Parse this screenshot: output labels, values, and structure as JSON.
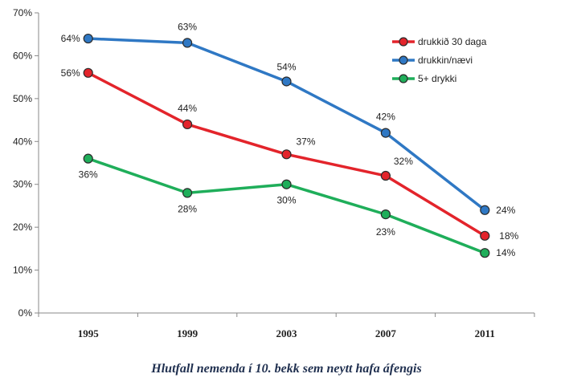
{
  "chart_data": {
    "type": "line",
    "categories": [
      "1995",
      "1999",
      "2003",
      "2007",
      "2011"
    ],
    "series": [
      {
        "name": "drukkið 30 daga",
        "color": "#e3242b",
        "values": [
          56,
          44,
          37,
          32,
          18
        ],
        "labels": [
          "56%",
          "44%",
          "37%",
          "32%",
          "18%"
        ]
      },
      {
        "name": "drukkin/nævi",
        "color": "#2f78c4",
        "values": [
          64,
          63,
          54,
          42,
          24
        ],
        "labels": [
          "64%",
          "63%",
          "54%",
          "42%",
          "24%"
        ]
      },
      {
        "name": "5+ drykki",
        "color": "#1fae5a",
        "values": [
          36,
          28,
          30,
          23,
          14
        ],
        "labels": [
          "36%",
          "28%",
          "30%",
          "23%",
          "14%"
        ]
      }
    ],
    "yticks": [
      "0%",
      "10%",
      "20%",
      "30%",
      "40%",
      "50%",
      "60%",
      "70%"
    ],
    "ylim": [
      0,
      70
    ],
    "legend_position": "top-right",
    "grid": false,
    "caption": "Hlutfall nemenda í 10. bekk sem neytt hafa áfengis"
  }
}
